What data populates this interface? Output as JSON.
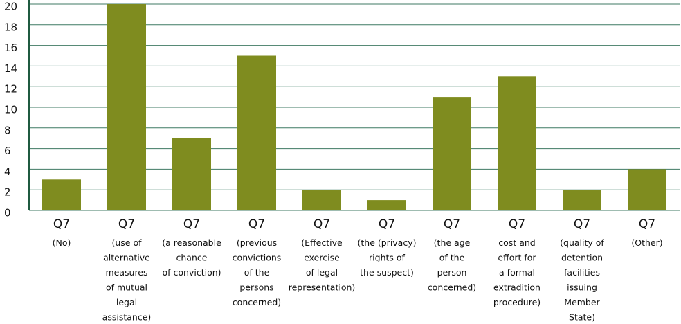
{
  "chart_data": {
    "type": "bar",
    "categories": [
      [
        "Q7",
        "(No)"
      ],
      [
        "Q7",
        "(use of",
        "alternative",
        "measures",
        "of mutual",
        "legal",
        "assistance)"
      ],
      [
        "Q7",
        "(a reasonable",
        "chance",
        "of conviction)"
      ],
      [
        "Q7",
        "(previous",
        "convictions",
        "of the",
        "persons",
        "concerned)"
      ],
      [
        "Q7",
        "(Effective",
        "exercise",
        "of legal",
        "representation)"
      ],
      [
        "Q7",
        "(the (privacy)",
        "rights of",
        "the suspect)"
      ],
      [
        "Q7",
        "(the age",
        "of the",
        "person",
        "concerned)"
      ],
      [
        "Q7",
        "cost and",
        "effort for",
        "a formal",
        "extradition",
        "procedure)"
      ],
      [
        "Q7",
        "(quality of",
        "detention",
        "facilities",
        "issuing",
        "Member",
        "State)"
      ],
      [
        "Q7",
        "(Other)"
      ]
    ],
    "values": [
      3,
      20,
      7,
      15,
      2,
      1,
      11,
      13,
      2,
      4
    ],
    "color": "#7f8c1f",
    "ylim": [
      0,
      20
    ],
    "yticks": [
      0,
      2,
      4,
      6,
      8,
      10,
      12,
      14,
      16,
      18,
      20
    ],
    "grid": true
  }
}
